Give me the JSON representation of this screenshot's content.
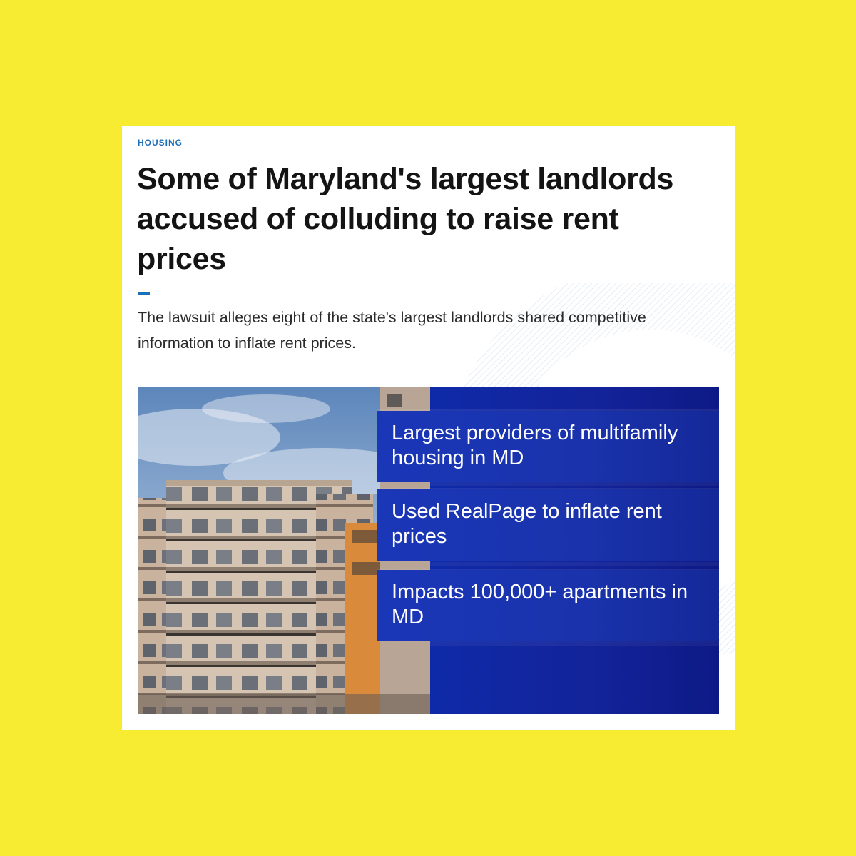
{
  "article": {
    "category": "HOUSING",
    "headline": "Some of Maryland's largest landlords accused of colluding to raise rent prices",
    "dek": "The lawsuit alleges eight of the state's largest landlords shared competitive information to inflate rent prices."
  },
  "graphic": {
    "bullets": [
      "Largest providers of multifamily housing in MD",
      "Used RealPage to inflate rent prices",
      "Impacts 100,000+ apartments in MD"
    ]
  },
  "colors": {
    "background": "#f8ec32",
    "card": "#ffffff",
    "accent": "#1d6fb8",
    "panel_blue": "#13239a",
    "text": "#141414"
  }
}
